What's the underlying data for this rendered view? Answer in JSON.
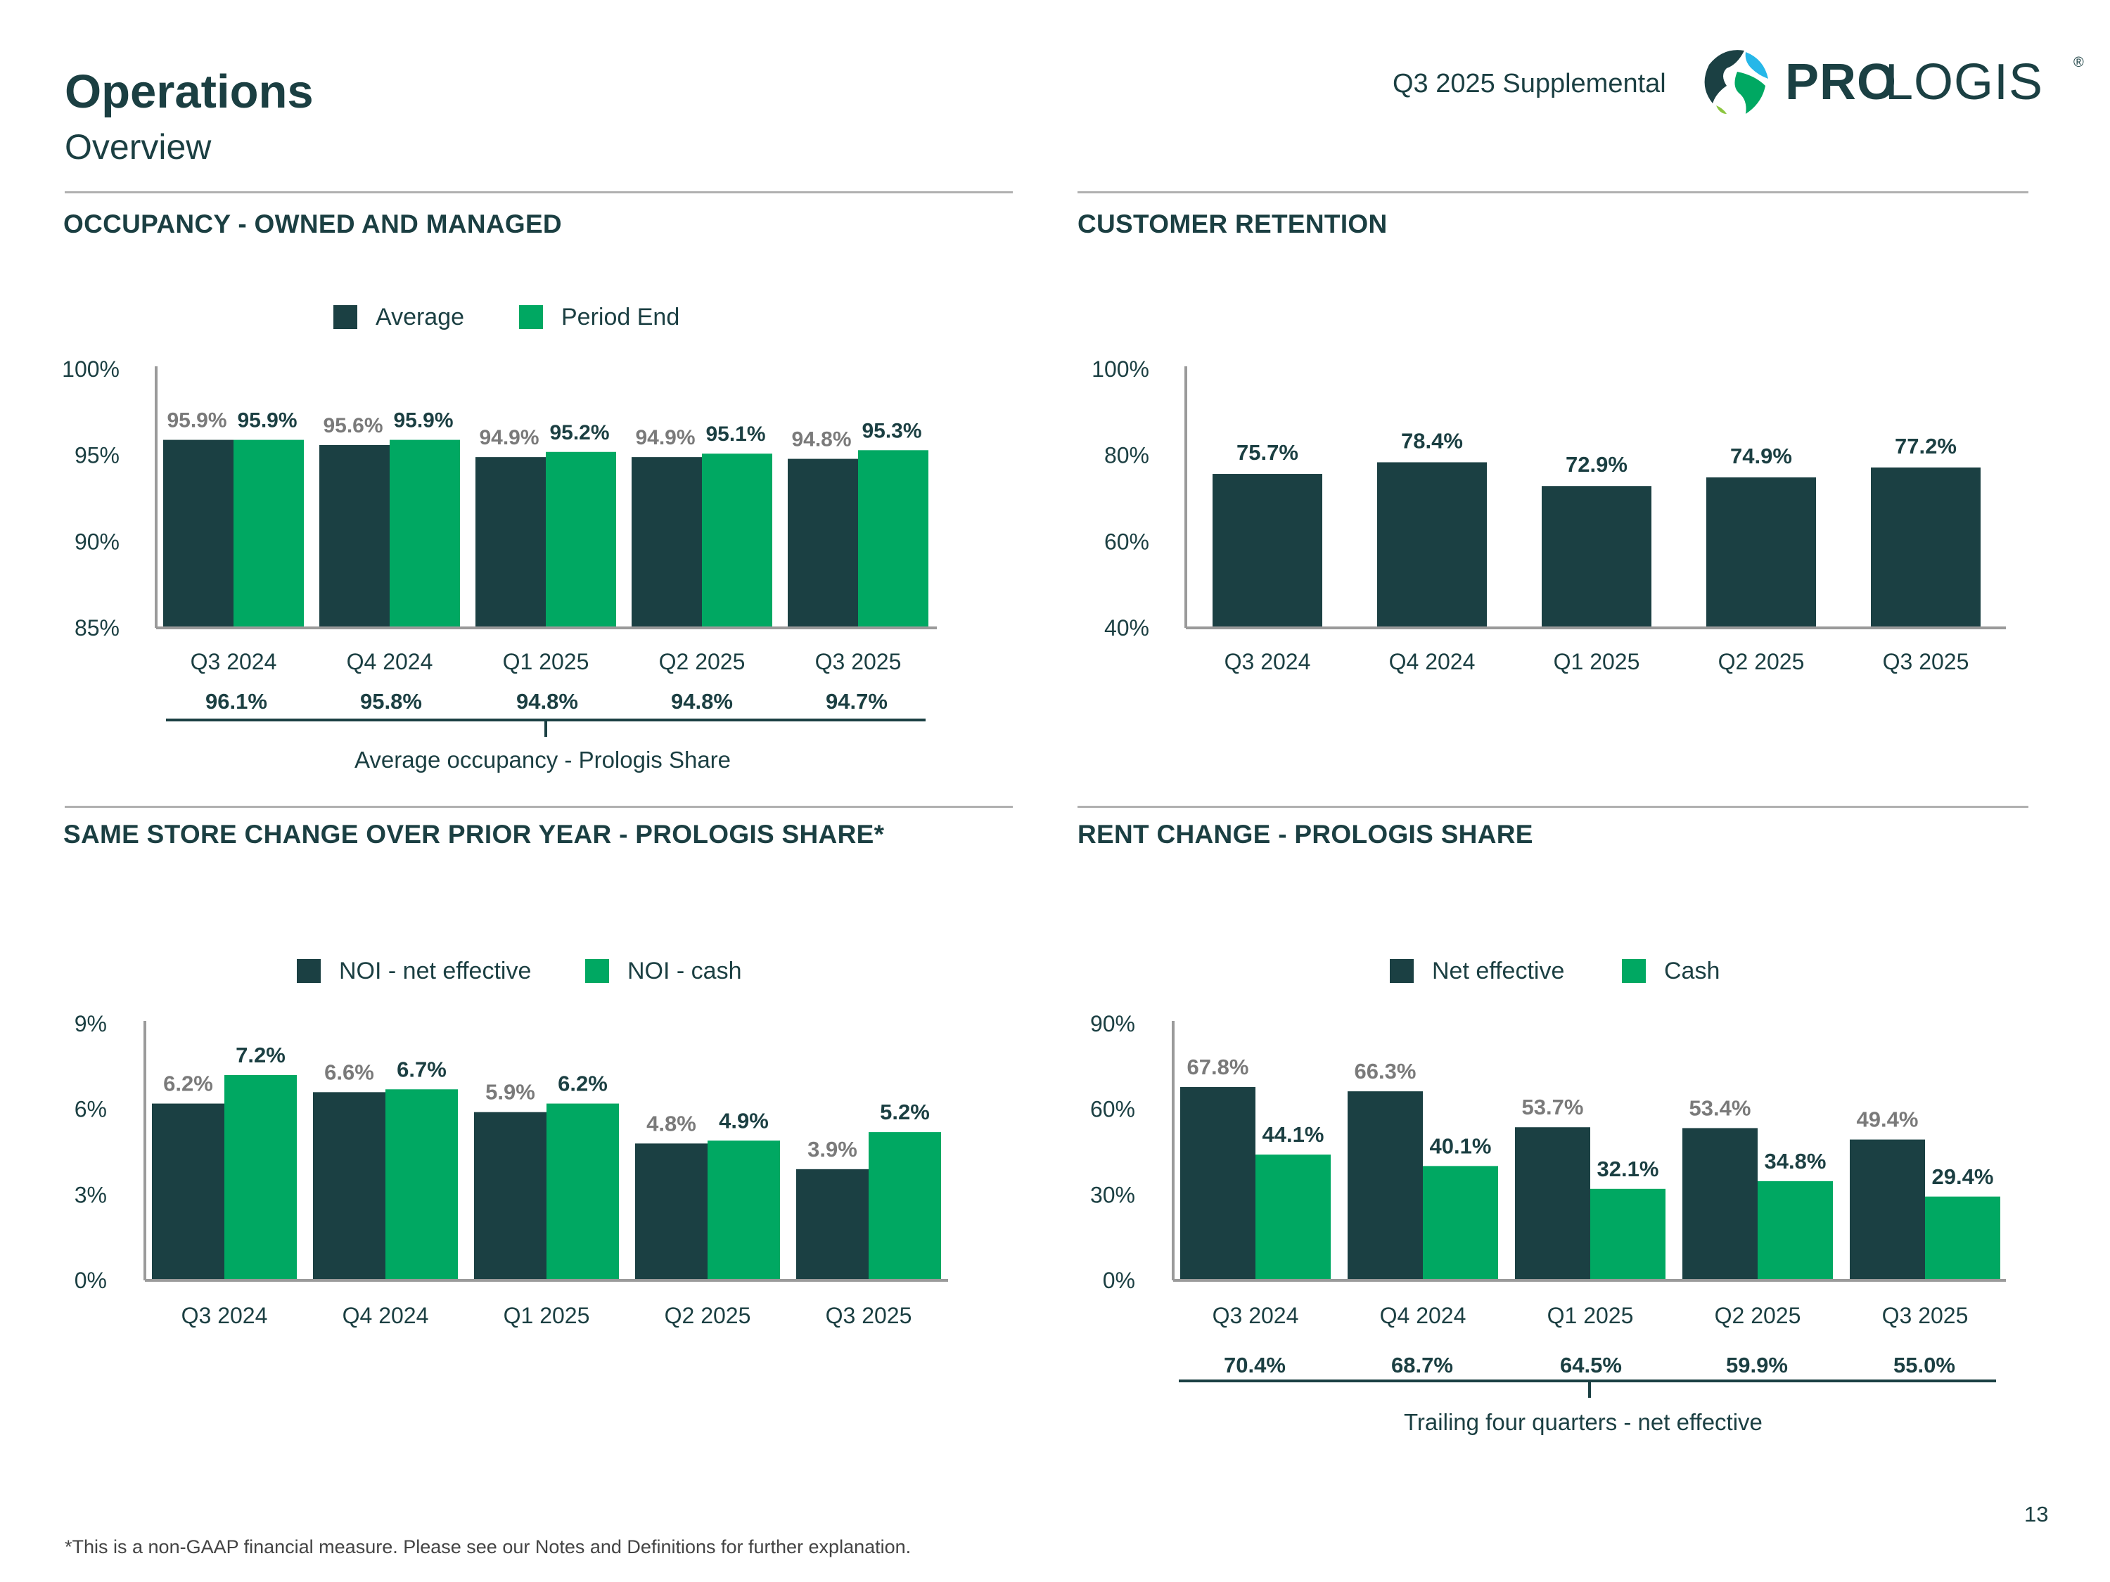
{
  "header": {
    "title": "Operations",
    "subtitle": "Overview",
    "supplemental": "Q3 2025 Supplemental",
    "logo_text_bold": "PRO",
    "logo_text_light": "LOGIS",
    "logo_reg": "®"
  },
  "colors": {
    "dark": "#1b4043",
    "green": "#00a862",
    "text": "#1b3f42",
    "grey_label": "#7a7a7a"
  },
  "footer": {
    "note": "*This is a non-GAAP financial measure. Please see our Notes and Definitions for further explanation.",
    "page": "13"
  },
  "occupancy": {
    "section_title": "OCCUPANCY - OWNED AND MANAGED",
    "legend": [
      "Average",
      "Period End"
    ],
    "summary": [
      "96.1%",
      "95.8%",
      "94.8%",
      "94.8%",
      "94.7%"
    ],
    "summary_caption": "Average occupancy - Prologis Share"
  },
  "retention": {
    "section_title": "CUSTOMER RETENTION"
  },
  "same_store": {
    "section_title": "SAME STORE CHANGE OVER PRIOR YEAR - PROLOGIS SHARE*",
    "legend": [
      "NOI - net effective",
      "NOI - cash"
    ]
  },
  "rent_change": {
    "section_title": "RENT CHANGE - PROLOGIS SHARE",
    "legend": [
      "Net effective",
      "Cash"
    ],
    "summary": [
      "70.4%",
      "68.7%",
      "64.5%",
      "59.9%",
      "55.0%"
    ],
    "summary_caption": "Trailing four quarters - net effective"
  },
  "chart_data": [
    {
      "id": "occupancy",
      "type": "bar",
      "title": "OCCUPANCY - OWNED AND MANAGED",
      "categories": [
        "Q3 2024",
        "Q4 2024",
        "Q1 2025",
        "Q2 2025",
        "Q3 2025"
      ],
      "series": [
        {
          "name": "Average",
          "values": [
            95.9,
            95.6,
            94.9,
            94.9,
            94.8
          ],
          "labels": [
            "95.9%",
            "95.6%",
            "94.9%",
            "94.9%",
            "94.8%"
          ]
        },
        {
          "name": "Period End",
          "values": [
            95.9,
            95.9,
            95.2,
            95.1,
            95.3
          ],
          "labels": [
            "95.9%",
            "95.9%",
            "95.2%",
            "95.1%",
            "95.3%"
          ]
        }
      ],
      "ylim": [
        85,
        100
      ],
      "yticks": [
        85,
        90,
        95,
        100
      ],
      "ytick_labels": [
        "85%",
        "90%",
        "95%",
        "100%"
      ]
    },
    {
      "id": "retention",
      "type": "bar",
      "title": "CUSTOMER RETENTION",
      "categories": [
        "Q3 2024",
        "Q4 2024",
        "Q1 2025",
        "Q2 2025",
        "Q3 2025"
      ],
      "series": [
        {
          "name": "Customer retention",
          "values": [
            75.7,
            78.4,
            72.9,
            74.9,
            77.2
          ],
          "labels": [
            "75.7%",
            "78.4%",
            "72.9%",
            "74.9%",
            "77.2%"
          ]
        }
      ],
      "ylim": [
        40,
        100
      ],
      "yticks": [
        40,
        60,
        80,
        100
      ],
      "ytick_labels": [
        "40%",
        "60%",
        "80%",
        "100%"
      ]
    },
    {
      "id": "same_store",
      "type": "bar",
      "title": "SAME STORE CHANGE OVER PRIOR YEAR - PROLOGIS SHARE*",
      "categories": [
        "Q3 2024",
        "Q4 2024",
        "Q1 2025",
        "Q2 2025",
        "Q3 2025"
      ],
      "series": [
        {
          "name": "NOI - net effective",
          "values": [
            6.2,
            6.6,
            5.9,
            4.8,
            3.9
          ],
          "labels": [
            "6.2%",
            "6.6%",
            "5.9%",
            "4.8%",
            "3.9%"
          ]
        },
        {
          "name": "NOI - cash",
          "values": [
            7.2,
            6.7,
            6.2,
            4.9,
            5.2
          ],
          "labels": [
            "7.2%",
            "6.7%",
            "6.2%",
            "4.9%",
            "5.2%"
          ]
        }
      ],
      "ylim": [
        0,
        9
      ],
      "yticks": [
        0,
        3,
        6,
        9
      ],
      "ytick_labels": [
        "0%",
        "3%",
        "6%",
        "9%"
      ]
    },
    {
      "id": "rent_change",
      "type": "bar",
      "title": "RENT CHANGE - PROLOGIS SHARE",
      "categories": [
        "Q3 2024",
        "Q4 2024",
        "Q1 2025",
        "Q2 2025",
        "Q3 2025"
      ],
      "series": [
        {
          "name": "Net effective",
          "values": [
            67.8,
            66.3,
            53.7,
            53.4,
            49.4
          ],
          "labels": [
            "67.8%",
            "66.3%",
            "53.7%",
            "53.4%",
            "49.4%"
          ]
        },
        {
          "name": "Cash",
          "values": [
            44.1,
            40.1,
            32.1,
            34.8,
            29.4
          ],
          "labels": [
            "44.1%",
            "40.1%",
            "32.1%",
            "34.8%",
            "29.4%"
          ]
        }
      ],
      "ylim": [
        0,
        90
      ],
      "yticks": [
        0,
        30,
        60,
        90
      ],
      "ytick_labels": [
        "0%",
        "30%",
        "60%",
        "90%"
      ]
    }
  ]
}
